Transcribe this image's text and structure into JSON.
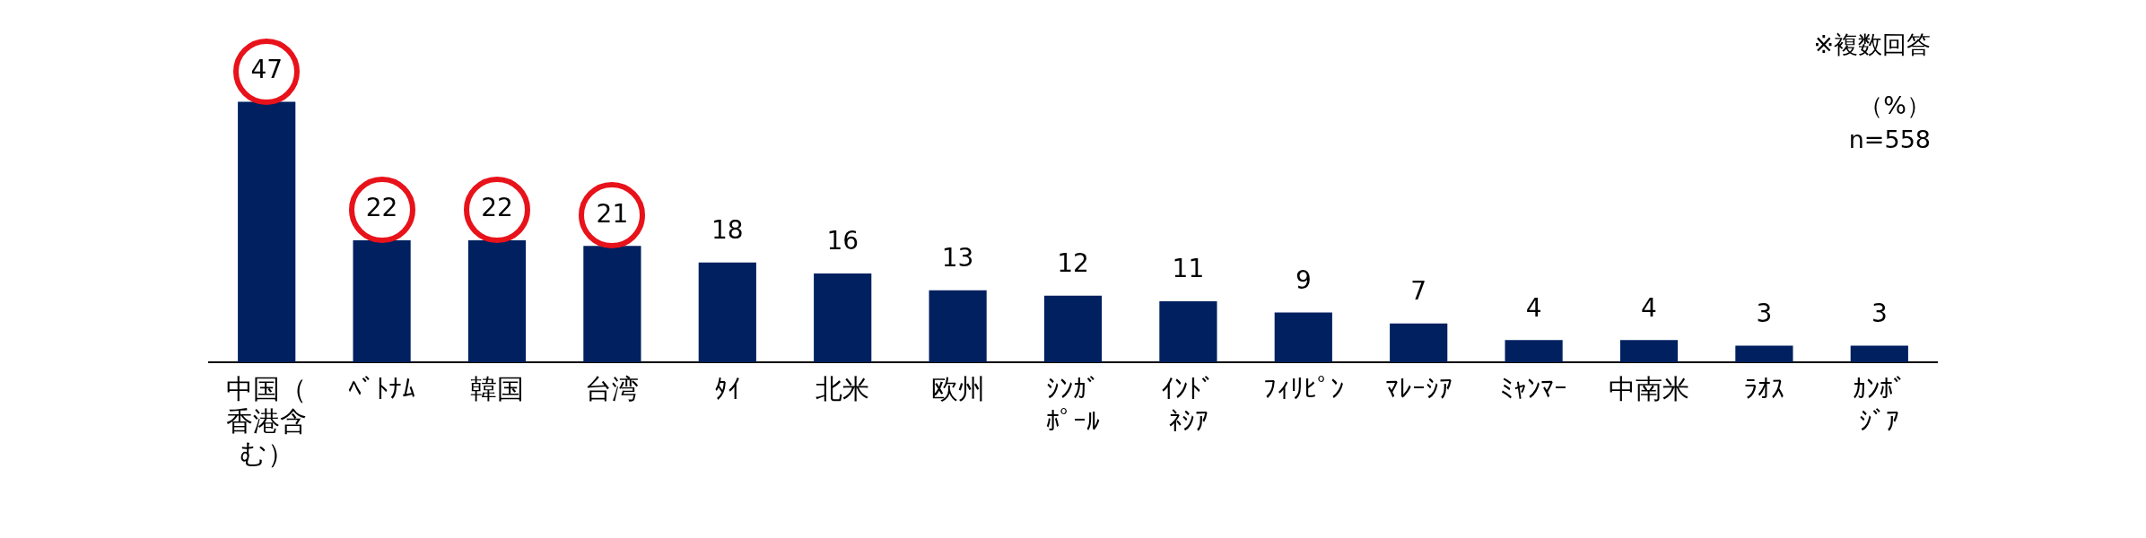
{
  "chart_data": {
    "type": "bar",
    "categories": [
      "中国（香港含む）",
      "ﾍﾞﾄﾅﾑ",
      "韓国",
      "台湾",
      "ﾀｲ",
      "北米",
      "欧州",
      "ｼﾝｶﾞﾎﾟｰﾙ",
      "ｲﾝﾄﾞﾈｼｱ",
      "ﾌｨﾘﾋﾟﾝ",
      "ﾏﾚｰｼｱ",
      "ﾐｬﾝﾏｰ",
      "中南米",
      "ﾗｵｽ",
      "ｶﾝﾎﾞｼﾞｱ"
    ],
    "values": [
      47,
      22,
      22,
      21,
      18,
      16,
      13,
      12,
      11,
      9,
      7,
      4,
      4,
      3,
      3
    ],
    "color": "#002060",
    "data_labels": true,
    "grid": false,
    "legend": false,
    "annotations": [
      "※複数回答",
      "（%）",
      "n=558"
    ]
  }
}
